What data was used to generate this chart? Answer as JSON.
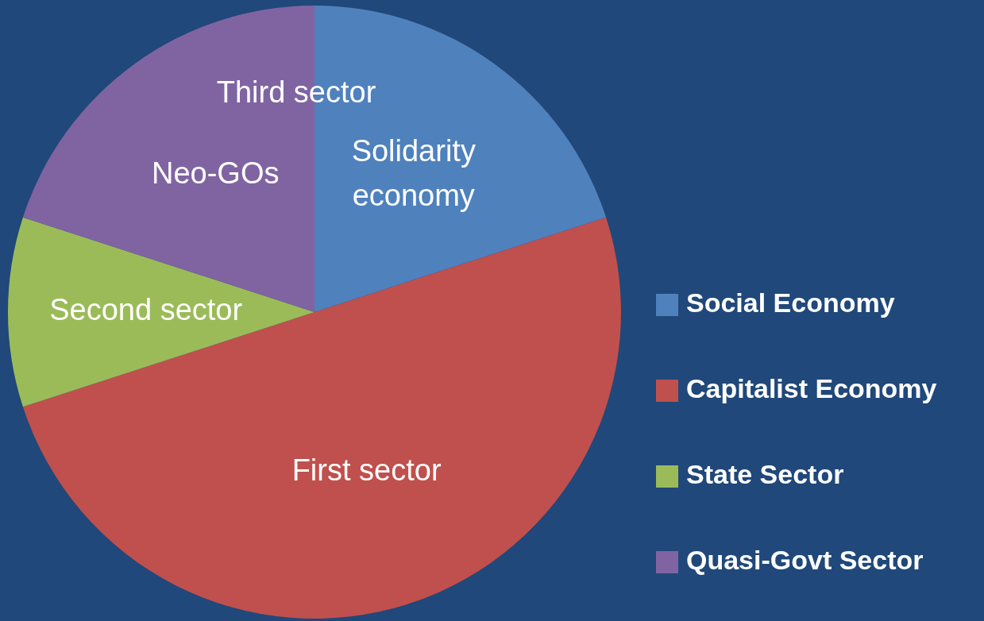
{
  "chart_data": {
    "type": "pie",
    "categories": [
      "Social Economy",
      "Capitalist Economy",
      "State Sector",
      "Quasi-Govt Sector"
    ],
    "values": [
      20,
      50,
      10,
      20
    ],
    "colors": [
      "#4f81bd",
      "#c0504d",
      "#9bbb59",
      "#8064a2"
    ],
    "legend": "right",
    "annotations": [
      "Solidarity\neconomy",
      "First sector",
      "Second sector",
      "Neo-GOs",
      "Third sector"
    ]
  }
}
